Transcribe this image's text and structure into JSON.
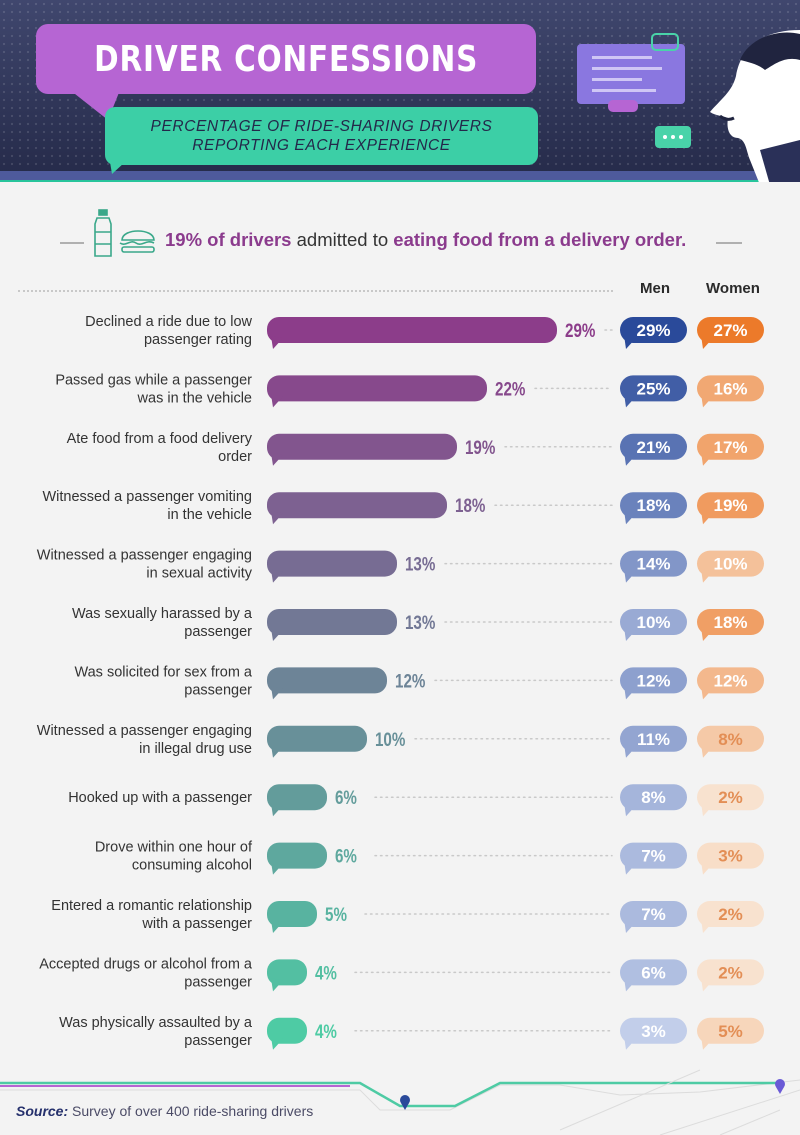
{
  "header": {
    "title": "DRIVER CONFESSIONS",
    "subtitle_line1": "PERCENTAGE OF RIDE-SHARING DRIVERS",
    "subtitle_line2": "REPORTING EACH EXPERIENCE"
  },
  "callout": {
    "part1": "19% of drivers",
    "part2": " admitted to ",
    "part3": "eating food from a delivery order."
  },
  "columns": {
    "men": "Men",
    "women": "Women"
  },
  "source": {
    "label": "Source:",
    "text": " Survey of over 400 ride-sharing drivers"
  },
  "colors": {
    "bar_top": "#8c3d8a",
    "bar_bottom": "#4ecba4",
    "men_dark": "#2a4a9a",
    "men_light": "#c2ceea",
    "women_dark": "#ec7a2a",
    "women_light": "#f8e2cf"
  },
  "chart_data": {
    "type": "bar",
    "orientation": "horizontal",
    "categories": [
      "Declined a ride due to low passenger rating",
      "Passed gas while a passenger was in the vehicle",
      "Ate food from a food delivery order",
      "Witnessed a passenger vomiting in the vehicle",
      "Witnessed a passenger engaging in sexual activity",
      "Was sexually harassed by a passenger",
      "Was solicited for sex from a passenger",
      "Witnessed a passenger engaging in illegal drug use",
      "Hooked up with a passenger",
      "Drove within one hour of consuming alcohol",
      "Entered a romantic relationship with a passenger",
      "Accepted drugs or alcohol from a passenger",
      "Was physically assaulted by a passenger"
    ],
    "label_lines": [
      [
        "Declined a ride due to low",
        "passenger rating"
      ],
      [
        "Passed gas while a passenger",
        "was in the vehicle"
      ],
      [
        "Ate food from a food delivery",
        "order"
      ],
      [
        "Witnessed a passenger vomiting",
        "in the vehicle"
      ],
      [
        "Witnessed a passenger engaging",
        "in sexual activity"
      ],
      [
        "Was sexually harassed by a",
        "passenger"
      ],
      [
        "Was solicited for sex from a",
        "passenger"
      ],
      [
        "Witnessed a passenger engaging",
        "in illegal drug use"
      ],
      [
        "Hooked up with a passenger"
      ],
      [
        "Drove within one hour of",
        "consuming alcohol"
      ],
      [
        "Entered a romantic relationship",
        "with a passenger"
      ],
      [
        "Accepted drugs or alcohol from a",
        "passenger"
      ],
      [
        "Was physically assaulted by a",
        "passenger"
      ]
    ],
    "series": [
      {
        "name": "",
        "values": [
          29,
          22,
          19,
          18,
          13,
          13,
          12,
          10,
          6,
          6,
          5,
          4,
          4
        ]
      },
      {
        "name": "Men",
        "values": [
          29,
          25,
          21,
          18,
          14,
          10,
          12,
          11,
          8,
          7,
          7,
          6,
          3
        ]
      },
      {
        "name": "Women",
        "values": [
          27,
          16,
          17,
          19,
          10,
          18,
          12,
          8,
          2,
          3,
          2,
          2,
          5
        ]
      }
    ],
    "unit": "%",
    "title": "DRIVER CONFESSIONS",
    "subtitle": "PERCENTAGE OF RIDE-SHARING DRIVERS REPORTING EACH EXPERIENCE",
    "xlabel": "",
    "ylabel": "",
    "xlim": [
      0,
      29
    ],
    "grid": false,
    "legend": "top-right column headers"
  }
}
